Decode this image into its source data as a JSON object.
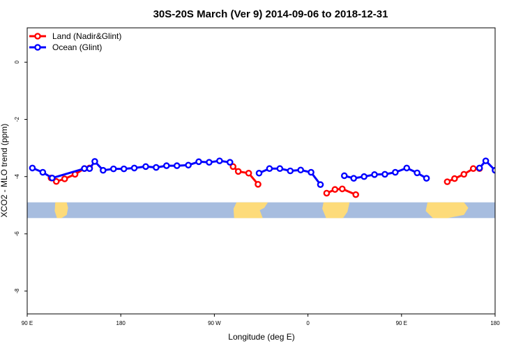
{
  "chart_data": {
    "type": "line",
    "title": "30S-20S March (Ver 9)   2014-09-06 to 2018-12-31",
    "xlabel": "Longitude (deg E)",
    "ylabel": "XCO2 - MLO trend (ppm)",
    "xlim": [
      90,
      540
    ],
    "ylim": [
      -8.8,
      1.2
    ],
    "x_ticks": [
      {
        "value": 90,
        "label": "90 E"
      },
      {
        "value": 180,
        "label": "180"
      },
      {
        "value": 270,
        "label": "90 W"
      },
      {
        "value": 360,
        "label": "0"
      },
      {
        "value": 450,
        "label": "90 E"
      },
      {
        "value": 540,
        "label": "180"
      }
    ],
    "y_ticks": [
      {
        "value": 0,
        "label": "0"
      },
      {
        "value": -2,
        "label": "-2"
      },
      {
        "value": -4,
        "label": "-4"
      },
      {
        "value": -6,
        "label": "-6"
      },
      {
        "value": -8,
        "label": "-8"
      }
    ],
    "legend_position": "top-left",
    "grid": false,
    "colors": {
      "land": "#ff0000",
      "ocean": "#0000ff",
      "land_mask": "#fddb7a",
      "ocean_mask": "#a7bddf"
    },
    "mask_band": {
      "y_top": -4.9,
      "y_bottom": -5.45
    },
    "land_masses": [
      {
        "x0": 117,
        "x1": 128,
        "shape": "australia"
      },
      {
        "x0": 289,
        "x1": 318,
        "shape": "south-america"
      },
      {
        "x0": 375,
        "x1": 400,
        "shape": "africa"
      },
      {
        "x0": 475,
        "x1": 510,
        "shape": "australia"
      }
    ],
    "series": [
      {
        "name": "Land (Nadir&Glint)",
        "key": "land",
        "segments": [
          [
            [
              113,
              -4.05
            ],
            [
              118,
              -4.17
            ],
            [
              126,
              -4.08
            ],
            [
              136,
              -3.92
            ],
            [
              145,
              -3.72
            ],
            [
              150,
              -3.7
            ]
          ],
          [
            [
              288,
              -3.65
            ],
            [
              293,
              -3.82
            ],
            [
              303,
              -3.88
            ],
            [
              312,
              -4.27
            ]
          ],
          [
            [
              378,
              -4.58
            ],
            [
              386,
              -4.45
            ],
            [
              393,
              -4.43
            ],
            [
              406,
              -4.63
            ]
          ],
          [
            [
              494,
              -4.18
            ],
            [
              501,
              -4.07
            ],
            [
              510,
              -3.92
            ],
            [
              519,
              -3.72
            ],
            [
              525,
              -3.72
            ]
          ]
        ]
      },
      {
        "name": "Ocean (Glint)",
        "key": "ocean",
        "segments": [
          [
            [
              95,
              -3.7
            ],
            [
              105,
              -3.85
            ],
            [
              114,
              -4.05
            ],
            [
              145,
              -3.72
            ],
            [
              150,
              -3.72
            ],
            [
              155,
              -3.47
            ],
            [
              163,
              -3.78
            ],
            [
              173,
              -3.73
            ],
            [
              183,
              -3.73
            ],
            [
              193,
              -3.7
            ],
            [
              204,
              -3.65
            ],
            [
              214,
              -3.68
            ],
            [
              224,
              -3.62
            ],
            [
              234,
              -3.62
            ],
            [
              245,
              -3.6
            ],
            [
              255,
              -3.48
            ],
            [
              265,
              -3.5
            ],
            [
              275,
              -3.45
            ],
            [
              285,
              -3.5
            ]
          ],
          [
            [
              313,
              -3.88
            ],
            [
              323,
              -3.72
            ],
            [
              333,
              -3.72
            ],
            [
              343,
              -3.8
            ],
            [
              353,
              -3.77
            ],
            [
              363,
              -3.85
            ],
            [
              372,
              -4.28
            ]
          ],
          [
            [
              395,
              -3.97
            ],
            [
              404,
              -4.06
            ],
            [
              414,
              -4.0
            ],
            [
              424,
              -3.93
            ],
            [
              434,
              -3.92
            ],
            [
              444,
              -3.85
            ],
            [
              455,
              -3.7
            ],
            [
              465,
              -3.87
            ],
            [
              474,
              -4.06
            ]
          ],
          [
            [
              525,
              -3.7
            ],
            [
              531,
              -3.45
            ],
            [
              540,
              -3.78
            ],
            [
              550,
              -3.72
            ]
          ]
        ]
      }
    ]
  }
}
